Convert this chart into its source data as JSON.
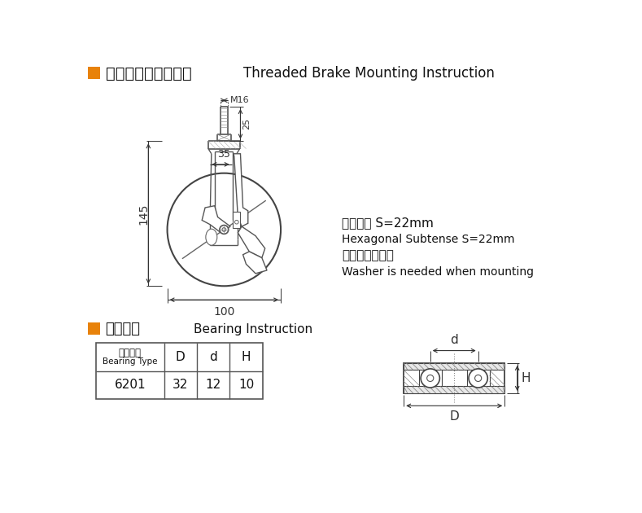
{
  "title_chinese": "丝口刹车安装尺寸图",
  "title_english": "Threaded Brake Mounting Instruction",
  "section2_chinese": "轴承说明",
  "section2_english": "Bearing Instruction",
  "orange_rect_color": "#E8820A",
  "dim_color": "#333333",
  "line_color": "#555555",
  "bg_color": "#FFFFFF",
  "annotation_lines": [
    "六角对边 S=22mm",
    "Hexagonal Subtense S=22mm",
    "安装必须加垫片",
    "Washer is needed when mounting"
  ],
  "table_headers_line1": [
    "轴承型号",
    "D",
    "d",
    "H"
  ],
  "table_headers_line2": [
    "Bearing Type",
    "",
    "",
    ""
  ],
  "table_data": [
    [
      "6201",
      "32",
      "12",
      "10"
    ]
  ],
  "dim_M16": "M16",
  "dim_25": "25",
  "dim_35": "35",
  "dim_145": "145",
  "dim_100": "100",
  "dim_d": "d",
  "dim_D": "D",
  "dim_H": "H"
}
